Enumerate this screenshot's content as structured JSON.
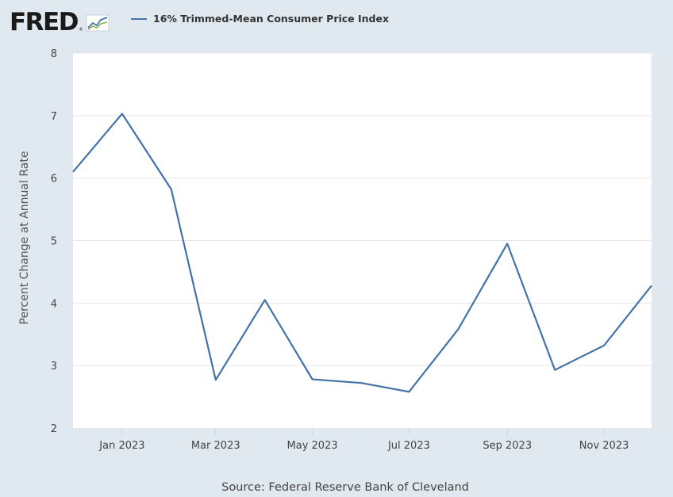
{
  "logo": {
    "text": "FRED",
    "mark": "®"
  },
  "legend": {
    "label": "16% Trimmed-Mean Consumer Price Index",
    "color": "#4572a7"
  },
  "source": "Source: Federal Reserve Bank of Cleveland",
  "colors": {
    "background": "#e1e9f0",
    "plot_area": "#ffffff",
    "line": "#4572a7",
    "grid": "#e6e6e6"
  },
  "chart_data": {
    "type": "line",
    "title": "",
    "xlabel": "",
    "ylabel": "Percent Change at Annual Rate",
    "ylim": [
      2,
      8
    ],
    "yticks": [
      2,
      3,
      4,
      5,
      6,
      7,
      8
    ],
    "xlim": [
      "2022-12-01",
      "2023-12-01"
    ],
    "xticks": [
      {
        "date": "2023-01-01",
        "label": "Jan 2023"
      },
      {
        "date": "2023-03-01",
        "label": "Mar 2023"
      },
      {
        "date": "2023-05-01",
        "label": "May 2023"
      },
      {
        "date": "2023-07-01",
        "label": "Jul 2023"
      },
      {
        "date": "2023-09-01",
        "label": "Sep 2023"
      },
      {
        "date": "2023-11-01",
        "label": "Nov 2023"
      }
    ],
    "grid": true,
    "legend_position": "top-left",
    "series": [
      {
        "name": "16% Trimmed-Mean Consumer Price Index",
        "x": [
          "2022-12-01",
          "2023-01-01",
          "2023-02-01",
          "2023-03-01",
          "2023-04-01",
          "2023-05-01",
          "2023-06-01",
          "2023-07-01",
          "2023-08-01",
          "2023-09-01",
          "2023-10-01",
          "2023-11-01",
          "2023-12-01"
        ],
        "values": [
          6.1,
          7.03,
          5.82,
          2.77,
          4.05,
          2.78,
          2.72,
          2.58,
          3.58,
          4.95,
          2.93,
          3.32,
          4.28
        ]
      }
    ]
  }
}
